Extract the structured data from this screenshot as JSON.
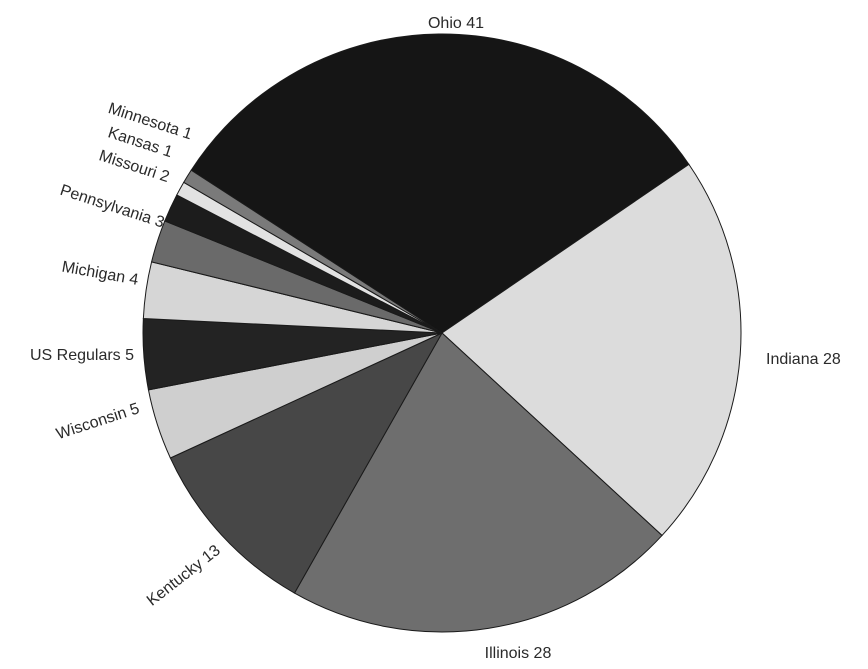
{
  "chart_data": {
    "type": "pie",
    "title": "",
    "slices": [
      {
        "label": "Ohio",
        "value": 41,
        "text": "Ohio 41",
        "color": "#151515"
      },
      {
        "label": "Indiana",
        "value": 28,
        "text": "Indiana 28",
        "color": "#dcdcdc"
      },
      {
        "label": "Illinois",
        "value": 28,
        "text": "Illinois 28",
        "color": "#6e6e6e"
      },
      {
        "label": "Kentucky",
        "value": 13,
        "text": "Kentucky 13",
        "color": "#474747"
      },
      {
        "label": "Wisconsin",
        "value": 5,
        "text": "Wisconsin 5",
        "color": "#cfcfcf"
      },
      {
        "label": "US Regulars",
        "value": 5,
        "text": "US Regulars 5",
        "color": "#232323"
      },
      {
        "label": "Michigan",
        "value": 4,
        "text": "Michigan 4",
        "color": "#d6d6d6"
      },
      {
        "label": "Pennsylvania",
        "value": 3,
        "text": "Pennsylvania 3",
        "color": "#6a6a6a"
      },
      {
        "label": "Missouri",
        "value": 2,
        "text": "Missouri 2",
        "color": "#1c1c1c"
      },
      {
        "label": "Kansas",
        "value": 1,
        "text": "Kansas 1",
        "color": "#e2e2e2"
      },
      {
        "label": "Minnesota",
        "value": 1,
        "text": "Minnesota 1",
        "color": "#7a7a7a"
      }
    ]
  }
}
